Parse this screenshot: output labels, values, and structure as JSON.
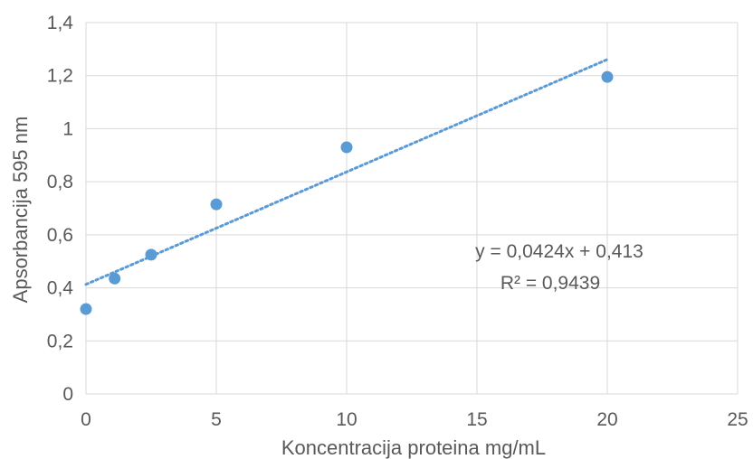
{
  "chart_data": {
    "type": "scatter",
    "title": "",
    "xlabel": "Koncentracija proteina mg/mL",
    "ylabel": "Apsorbancija 595 nm",
    "xlim": [
      0,
      25
    ],
    "ylim": [
      0,
      1.4
    ],
    "x_ticks": [
      "0",
      "5",
      "10",
      "15",
      "20",
      "25"
    ],
    "y_ticks": [
      "0",
      "0,2",
      "0,4",
      "0,6",
      "0,8",
      "1",
      "1,2",
      "1,4"
    ],
    "grid": true,
    "series": [
      {
        "color": "#5b9bd5",
        "points": [
          {
            "x": 0,
            "y": 0.32
          },
          {
            "x": 1.1,
            "y": 0.435
          },
          {
            "x": 2.5,
            "y": 0.525
          },
          {
            "x": 5,
            "y": 0.715
          },
          {
            "x": 10,
            "y": 0.93
          },
          {
            "x": 20,
            "y": 1.195
          }
        ]
      }
    ],
    "trendline": {
      "type": "linear",
      "style": "dotted",
      "color": "#5b9bd5",
      "slope": 0.0424,
      "intercept": 0.413,
      "x_range": [
        0,
        20
      ],
      "equation": "y = 0,0424x + 0,413",
      "r_squared": "R² = 0,9439"
    }
  }
}
